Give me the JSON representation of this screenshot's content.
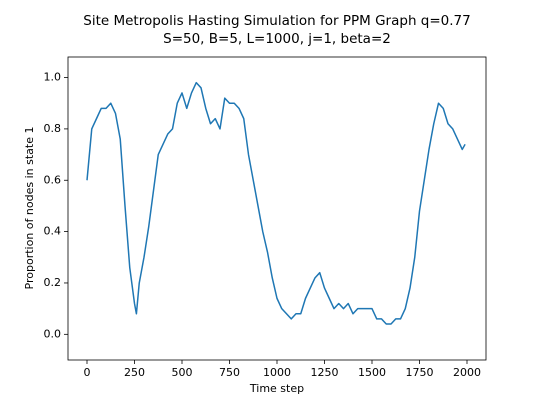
{
  "chart_data": {
    "type": "line",
    "title": "Site Metropolis Hasting Simulation for PPM Graph q=0.77",
    "subtitle": "S=50, B=5, L=1000, j=1, beta=2",
    "x_label": "Time step",
    "y_label": "Proportion of nodes in state 1",
    "x": [
      0,
      25,
      50,
      75,
      100,
      125,
      150,
      175,
      200,
      225,
      250,
      260,
      275,
      300,
      325,
      350,
      375,
      400,
      425,
      450,
      475,
      500,
      525,
      550,
      575,
      600,
      625,
      650,
      675,
      700,
      725,
      750,
      775,
      800,
      825,
      850,
      875,
      900,
      925,
      950,
      975,
      1000,
      1025,
      1050,
      1075,
      1100,
      1125,
      1150,
      1175,
      1200,
      1225,
      1250,
      1275,
      1300,
      1325,
      1350,
      1375,
      1400,
      1425,
      1450,
      1475,
      1500,
      1525,
      1550,
      1575,
      1600,
      1625,
      1650,
      1675,
      1700,
      1725,
      1750,
      1775,
      1800,
      1825,
      1850,
      1875,
      1900,
      1925,
      1950,
      1975,
      1990
    ],
    "series": [
      {
        "name": "state 1",
        "color": "#1f77b4",
        "values": [
          0.6,
          0.8,
          0.84,
          0.88,
          0.88,
          0.9,
          0.86,
          0.76,
          0.5,
          0.26,
          0.12,
          0.08,
          0.2,
          0.3,
          0.42,
          0.56,
          0.7,
          0.74,
          0.78,
          0.8,
          0.9,
          0.94,
          0.88,
          0.94,
          0.98,
          0.96,
          0.88,
          0.82,
          0.84,
          0.8,
          0.92,
          0.9,
          0.9,
          0.88,
          0.84,
          0.7,
          0.6,
          0.5,
          0.4,
          0.32,
          0.22,
          0.14,
          0.1,
          0.08,
          0.06,
          0.08,
          0.08,
          0.14,
          0.18,
          0.22,
          0.24,
          0.18,
          0.14,
          0.1,
          0.12,
          0.1,
          0.12,
          0.08,
          0.1,
          0.1,
          0.1,
          0.1,
          0.06,
          0.06,
          0.04,
          0.04,
          0.06,
          0.06,
          0.1,
          0.18,
          0.3,
          0.48,
          0.6,
          0.72,
          0.82,
          0.9,
          0.88,
          0.82,
          0.8,
          0.76,
          0.72,
          0.74
        ]
      }
    ],
    "xlim": [
      -100,
      2100
    ],
    "ylim": [
      -0.1,
      1.08
    ],
    "xticks": [
      0,
      250,
      500,
      750,
      1000,
      1250,
      1500,
      1750,
      2000
    ],
    "yticks": [
      {
        "value": 0,
        "label": "0.0"
      },
      0.2,
      0.4,
      0.6,
      0.8,
      {
        "value": 1,
        "label": "1.0"
      }
    ]
  }
}
